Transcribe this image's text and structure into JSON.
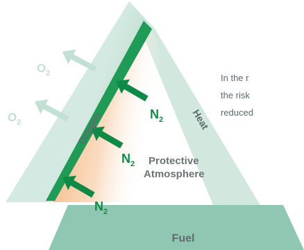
{
  "diagram": {
    "sides": {
      "oxygen": "Oxygen",
      "heat": "Heat",
      "fuel": "Fuel"
    },
    "molecules": {
      "displaced": [
        {
          "symbol": "O",
          "subscript": "2"
        },
        {
          "symbol": "O",
          "subscript": "2"
        }
      ],
      "inerting": [
        {
          "symbol": "N",
          "subscript": "2"
        },
        {
          "symbol": "N",
          "subscript": "2"
        },
        {
          "symbol": "N",
          "subscript": "2"
        }
      ]
    },
    "center_label": {
      "line1": "Protective",
      "line2": "Atmosphere"
    },
    "colors": {
      "side_fill": "#cfe6dd",
      "side_fill_dark": "#b7d9cc",
      "fuel_fill": "#8cc5b0",
      "oxygen_edge": "#1f9a57",
      "inert_arrow": "#0f8a46",
      "faded_arrow": "#c2e1d4",
      "atmosphere_orange": "#f6bb86",
      "label_grey": "#6c7476",
      "side_label": "#5f6b6c"
    }
  },
  "note": {
    "line1": "In the r",
    "line2": "the risk",
    "line3": "reduced"
  }
}
